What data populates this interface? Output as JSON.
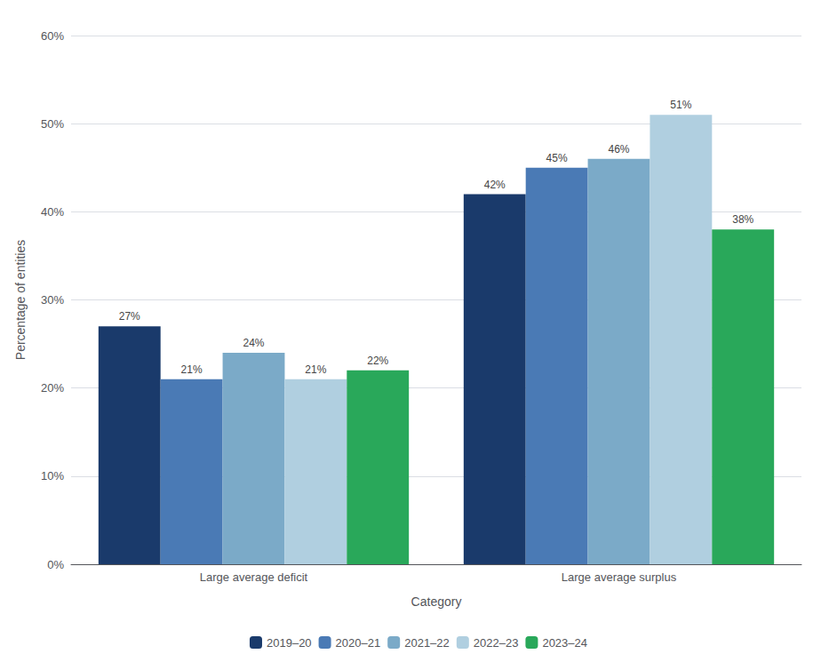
{
  "chart_data": {
    "type": "bar",
    "categories": [
      "Large average deficit",
      "Large average surplus"
    ],
    "series": [
      {
        "name": "2019–20",
        "color": "#1a3a6b",
        "values": [
          27,
          42
        ],
        "value_labels": [
          "27%",
          "42%"
        ]
      },
      {
        "name": "2020–21",
        "color": "#4a7ab5",
        "values": [
          21,
          45
        ],
        "value_labels": [
          "21%",
          "45%"
        ]
      },
      {
        "name": "2021–22",
        "color": "#7baac8",
        "values": [
          24,
          46
        ],
        "value_labels": [
          "24%",
          "46%"
        ]
      },
      {
        "name": "2022–23",
        "color": "#b0cfe0",
        "values": [
          21,
          51
        ],
        "value_labels": [
          "21%",
          "51%"
        ]
      },
      {
        "name": "2023–24",
        "color": "#29a85a",
        "values": [
          22,
          38
        ],
        "value_labels": [
          "22%",
          "38%"
        ]
      }
    ],
    "xlabel": "Category",
    "ylabel": "Percentage of entities",
    "ylim": [
      0,
      60
    ],
    "yticks": [
      {
        "value": 0,
        "label": "0%"
      },
      {
        "value": 10,
        "label": "10%"
      },
      {
        "value": 20,
        "label": "20%"
      },
      {
        "value": 30,
        "label": "30%"
      },
      {
        "value": 40,
        "label": "40%"
      },
      {
        "value": 50,
        "label": "50%"
      },
      {
        "value": 60,
        "label": "60%"
      }
    ],
    "grid": true,
    "legend": "bottom",
    "data_labels": true
  }
}
